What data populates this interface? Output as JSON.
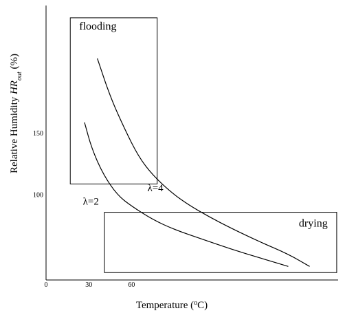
{
  "chart_data": {
    "type": "line",
    "xlabel": "Temperature (°C)",
    "ylabel": "Relative Humidity HR_out (%)",
    "ylabel_parts": {
      "pre": "Relative Humidity ",
      "ital": "HR",
      "sub": "out",
      "post": " (%)"
    },
    "xlabel_parts": {
      "pre": "Temperature (",
      "sup": "o",
      "post": "C)"
    },
    "x_ticks": [
      {
        "value": 0,
        "label": "0"
      },
      {
        "value": 30,
        "label": "30"
      },
      {
        "value": 60,
        "label": "60"
      }
    ],
    "y_ticks": [
      {
        "value": 100,
        "label": "100"
      },
      {
        "value": 150,
        "label": "150"
      }
    ],
    "xlim": [
      0,
      205
    ],
    "ylim": [
      31,
      254
    ],
    "series": [
      {
        "name": "λ=2",
        "points": [
          [
            27,
            159
          ],
          [
            32,
            138
          ],
          [
            40,
            117
          ],
          [
            50,
            100
          ],
          [
            60,
            91
          ],
          [
            75,
            80
          ],
          [
            90,
            72
          ],
          [
            110,
            64
          ],
          [
            130,
            56
          ],
          [
            150,
            49
          ],
          [
            170,
            42
          ]
        ]
      },
      {
        "name": "λ=4",
        "points": [
          [
            36,
            211
          ],
          [
            45,
            180
          ],
          [
            55,
            154
          ],
          [
            65,
            131
          ],
          [
            75,
            116
          ],
          [
            88,
            102
          ],
          [
            100,
            92
          ],
          [
            115,
            82
          ],
          [
            130,
            73
          ],
          [
            150,
            62
          ],
          [
            170,
            52
          ],
          [
            185,
            42
          ]
        ]
      }
    ],
    "regions": [
      {
        "label": "flooding",
        "x": [
          17,
          78
        ],
        "y": [
          109,
          244
        ]
      },
      {
        "label": "drying",
        "x": [
          41,
          204
        ],
        "y": [
          37,
          86
        ]
      }
    ]
  }
}
